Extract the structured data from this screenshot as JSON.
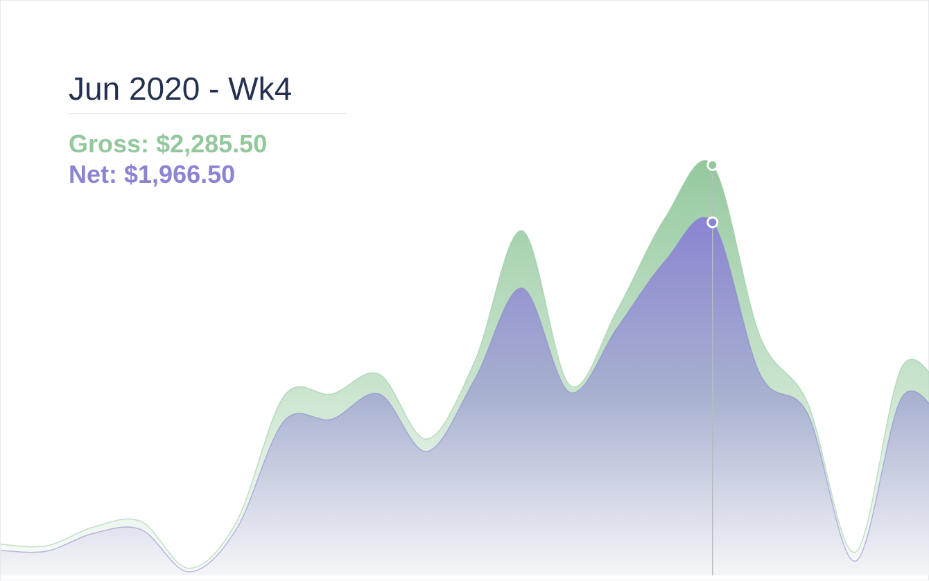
{
  "tooltip": {
    "title": "Jun 2020 - Wk4",
    "gross_label": "Gross:",
    "gross_value": "$2,285.50",
    "net_label": "Net:",
    "net_value": "$1,966.50"
  },
  "chart_data": {
    "type": "area",
    "title": "",
    "xlabel": "",
    "ylabel": "",
    "ylim": [
      0,
      3200
    ],
    "grid": false,
    "legend": "none",
    "highlight_period": "Jun 2020 - Wk4",
    "highlight_index": 15,
    "series": [
      {
        "name": "Gross",
        "color": "#93c89d",
        "values": [
          175,
          165,
          270,
          300,
          40,
          300,
          1000,
          1010,
          1120,
          760,
          1190,
          1920,
          1060,
          1480,
          1990,
          2285,
          1330,
          960,
          130,
          1170,
          950
        ]
      },
      {
        "name": "Net",
        "color": "#8a84d2",
        "values": [
          140,
          135,
          235,
          255,
          20,
          260,
          860,
          870,
          1010,
          690,
          1090,
          1600,
          1020,
          1380,
          1750,
          1966.5,
          1120,
          900,
          80,
          1000,
          790
        ]
      }
    ]
  },
  "colors": {
    "gross": "#93c89d",
    "net": "#8a84d2",
    "title": "#243050",
    "crosshair": "#b8babd"
  }
}
